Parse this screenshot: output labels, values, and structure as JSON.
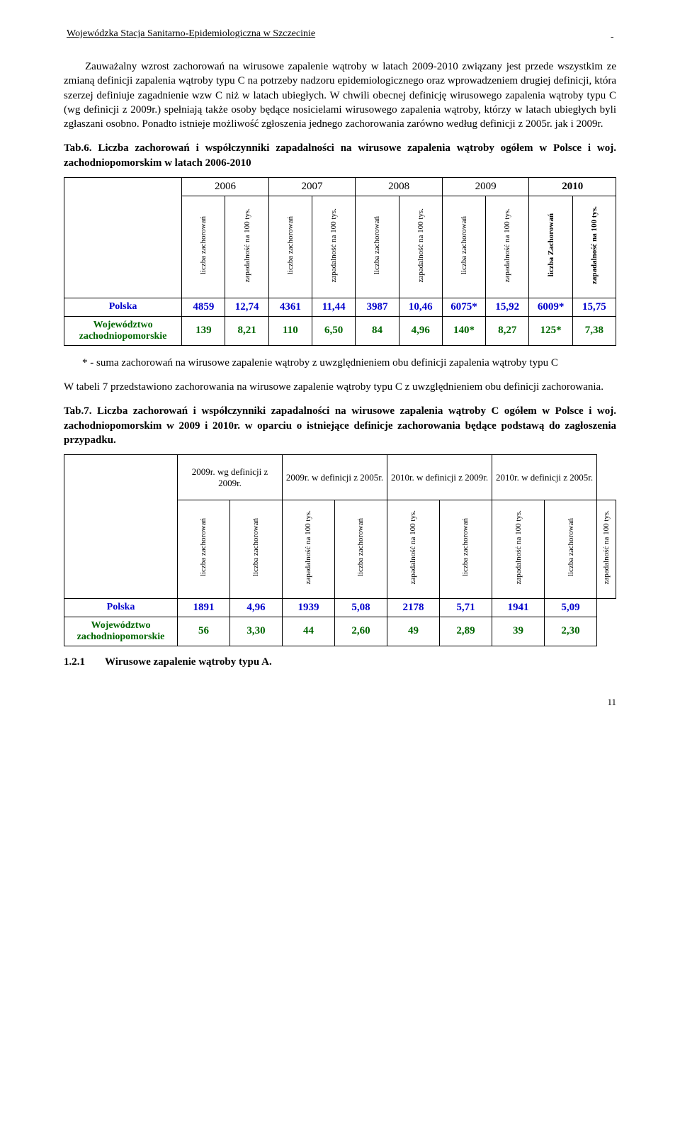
{
  "header": "Wojewódzka Stacja Sanitarno-Epidemiologiczna w Szczecinie",
  "para1": "Zauważalny wzrost zachorowań na wirusowe zapalenie wątroby w latach 2009-2010 związany jest przede wszystkim ze zmianą definicji zapalenia wątroby typu C na potrzeby nadzoru epidemiologicznego oraz wprowadzeniem drugiej definicji, która szerzej definiuje zagadnienie wzw C niż w latach ubiegłych. W chwili obecnej definicję wirusowego zapalenia wątroby typu C (wg definicji z 2009r.) spełniają także osoby będące nosicielami wirusowego zapalenia wątroby, którzy w latach ubiegłych byli zgłaszani osobno. Ponadto istnieje możliwość zgłoszenia jednego zachorowania zarówno według definicji z 2005r. jak i 2009r.",
  "tab6_caption": "Tab.6. Liczba zachorowań i współczynniki zapadalności na wirusowe zapalenia wątroby ogółem w Polsce i woj. zachodniopomorskim w latach 2006-2010",
  "tab6": {
    "years": [
      "2006",
      "2007",
      "2008",
      "2009",
      "2010"
    ],
    "subheads": {
      "liczba": "liczba zachorowań",
      "liczba_Z": "liczba Zachorowań",
      "zapad": "zapadalność na 100 tys."
    },
    "rows": [
      {
        "label": "Polska",
        "color": "#0000cc",
        "cells": [
          "4859",
          "12,74",
          "4361",
          "11,44",
          "3987",
          "10,46",
          "6075*",
          "15,92",
          "6009*",
          "15,75"
        ]
      },
      {
        "label": "Województwo zachodniopomorskie",
        "color": "#006600",
        "cells": [
          "139",
          "8,21",
          "110",
          "6,50",
          "84",
          "4,96",
          "140*",
          "8,27",
          "125*",
          "7,38"
        ]
      }
    ]
  },
  "note6": "* - suma zachorowań na wirusowe zapalenie wątroby z uwzględnieniem obu definicji zapalenia wątroby typu C",
  "mid": "W tabeli 7 przedstawiono zachorowania na wirusowe zapalenie wątroby typu C z uwzględnieniem obu definicji zachorowania.",
  "tab7_caption": "Tab.7. Liczba zachorowań i współczynniki zapadalności na wirusowe zapalenia wątroby C ogółem w Polsce i woj. zachodniopomorskim w 2009 i 2010r. w oparciu o istniejące definicje zachorowania będące podstawą do zagłoszenia przypadku.",
  "tab7": {
    "defs": [
      "2009r. wg definicji z 2009r.",
      "2009r. w definicji z 2005r.",
      "2010r. w definicji z 2009r.",
      "2010r. w definicji z 2005r."
    ],
    "subheads": {
      "liczba": "liczba zachorowań",
      "zapad": "zapadalność na 100 tys."
    },
    "rows": [
      {
        "label": "Polska",
        "color": "#0000cc",
        "cells": [
          "1891",
          "4,96",
          "1939",
          "5,08",
          "2178",
          "5,71",
          "1941",
          "5,09"
        ]
      },
      {
        "label": "Województwo zachodniopomorskie",
        "color": "#006600",
        "cells": [
          "56",
          "3,30",
          "44",
          "2,60",
          "49",
          "2,89",
          "39",
          "2,30"
        ]
      }
    ]
  },
  "section": {
    "num": "1.2.1",
    "title": "Wirusowe zapalenie wątroby typu A."
  },
  "page": "11"
}
